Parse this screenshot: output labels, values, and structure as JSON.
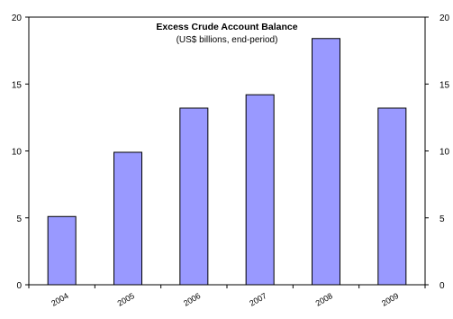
{
  "chart_data": {
    "type": "bar",
    "title": "Excess Crude Account Balance",
    "subtitle": "(US$ billions, end-period)",
    "categories": [
      "2004",
      "2005",
      "2006",
      "2007",
      "2008",
      "2009"
    ],
    "values": [
      5.1,
      9.9,
      13.2,
      14.2,
      18.4,
      13.2
    ],
    "xlabel": "",
    "ylabel": "",
    "ylim": [
      0,
      20
    ],
    "yticks": [
      0,
      5,
      10,
      15,
      20
    ],
    "y_axis_sides": "both",
    "grid": false,
    "bar_color": "#9999ff",
    "bar_edge_color": "#000000"
  }
}
